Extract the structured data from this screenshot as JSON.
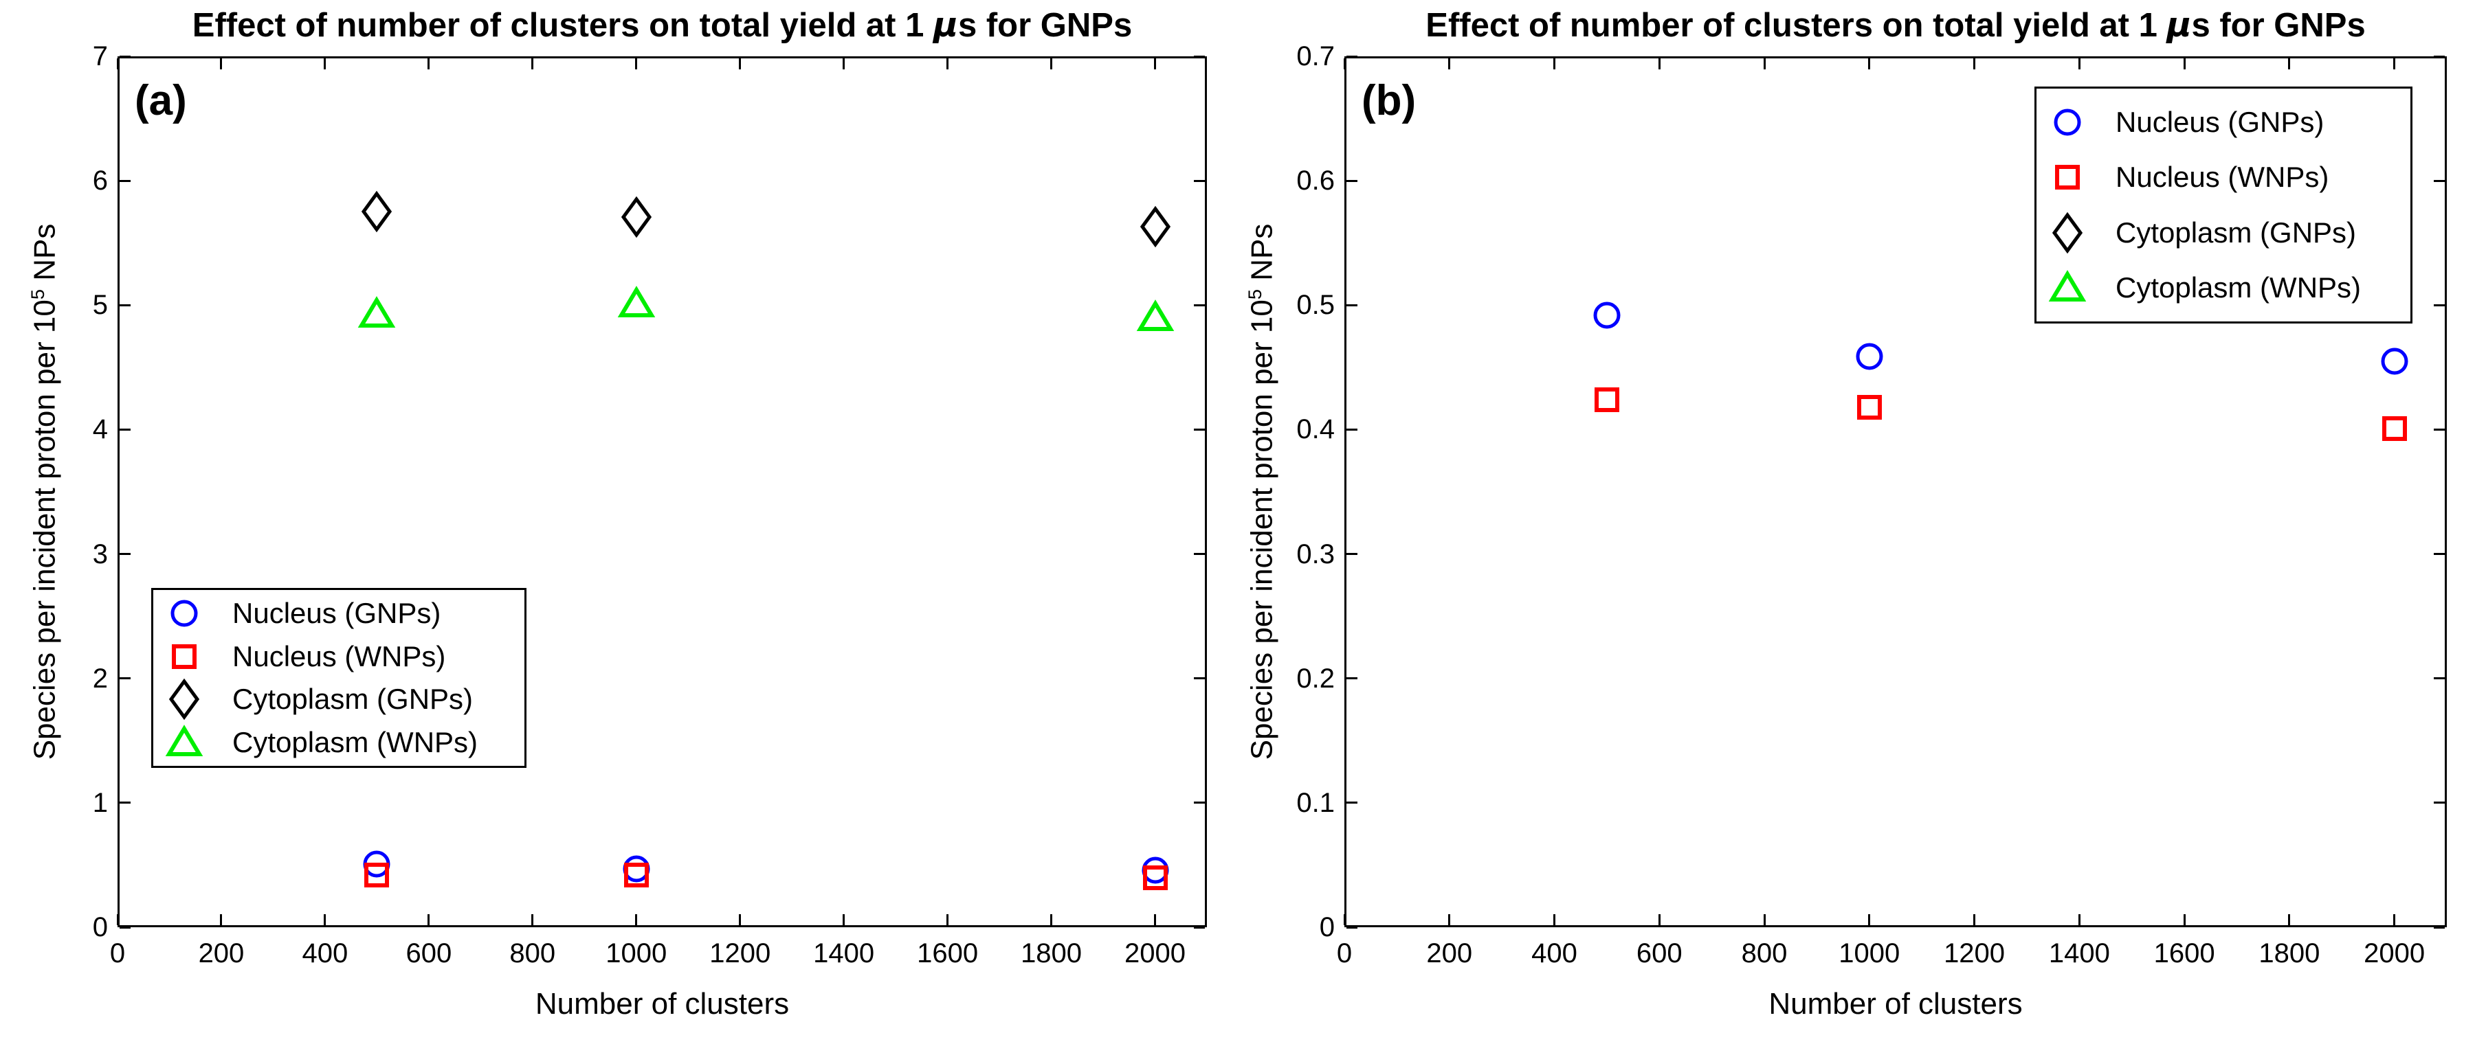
{
  "chart_data": [
    {
      "id": "a",
      "type": "scatter",
      "panel_label": "(a)",
      "title": "Effect of number of clusters on total yield at 1 μs for GNPs",
      "title_parts": {
        "prefix": "Effect of number of clusters on total yield at 1 ",
        "mu": "μ",
        "suffix": "s for GNPs"
      },
      "xlabel": "Number of clusters",
      "ylabel": "Species per incident proton per 10^5 NPs",
      "ylabel_parts": {
        "prefix": "Species per incident proton per 10",
        "sup": "5",
        "suffix": " NPs"
      },
      "xlim": [
        0,
        2100
      ],
      "ylim": [
        0,
        7
      ],
      "xticks": [
        0,
        200,
        400,
        600,
        800,
        1000,
        1200,
        1400,
        1600,
        1800,
        2000
      ],
      "xtick_labels": [
        "0",
        "200",
        "400",
        "600",
        "800",
        "1000",
        "1200",
        "1400",
        "1600",
        "1800",
        "2000"
      ],
      "yticks": [
        0,
        1,
        2,
        3,
        4,
        5,
        6,
        7
      ],
      "ytick_labels": [
        "0",
        "1",
        "2",
        "3",
        "4",
        "5",
        "6",
        "7"
      ],
      "grid": false,
      "legend_position": "inside-middle-left",
      "x": [
        500,
        1000,
        2000
      ],
      "series": [
        {
          "name": "Nucleus (GNPs)",
          "marker": "circle",
          "color": "#0000ff",
          "values": [
            0.51,
            0.47,
            0.46
          ]
        },
        {
          "name": "Nucleus (WNPs)",
          "marker": "square",
          "color": "#ff0000",
          "values": [
            0.42,
            0.42,
            0.4
          ]
        },
        {
          "name": "Cytoplasm (GNPs)",
          "marker": "diamond",
          "color": "#000000",
          "values": [
            5.75,
            5.71,
            5.63
          ]
        },
        {
          "name": "Cytoplasm (WNPs)",
          "marker": "triangle",
          "color": "#00ee00",
          "values": [
            4.93,
            5.01,
            4.9
          ]
        }
      ]
    },
    {
      "id": "b",
      "type": "scatter",
      "panel_label": "(b)",
      "title": "Effect of number of clusters on total yield at 1 μs for GNPs",
      "title_parts": {
        "prefix": "Effect of number of clusters on total yield at 1 ",
        "mu": "μ",
        "suffix": "s for GNPs"
      },
      "xlabel": "Number of clusters",
      "ylabel": "Species per incident proton per 10^5 NPs",
      "ylabel_parts": {
        "prefix": "Species per incident proton per 10",
        "sup": "5",
        "suffix": " NPs"
      },
      "xlim": [
        0,
        2100
      ],
      "ylim": [
        0,
        0.7
      ],
      "xticks": [
        0,
        200,
        400,
        600,
        800,
        1000,
        1200,
        1400,
        1600,
        1800,
        2000
      ],
      "xtick_labels": [
        "0",
        "200",
        "400",
        "600",
        "800",
        "1000",
        "1200",
        "1400",
        "1600",
        "1800",
        "2000"
      ],
      "yticks": [
        0,
        0.1,
        0.2,
        0.3,
        0.4,
        0.5,
        0.6,
        0.7
      ],
      "ytick_labels": [
        "0",
        "0.1",
        "0.2",
        "0.3",
        "0.4",
        "0.5",
        "0.6",
        "0.7"
      ],
      "grid": false,
      "legend_position": "inside-top-right",
      "x": [
        500,
        1000,
        2000
      ],
      "series": [
        {
          "name": "Nucleus (GNPs)",
          "marker": "circle",
          "color": "#0000ff",
          "values": [
            0.492,
            0.459,
            0.455
          ]
        },
        {
          "name": "Nucleus (WNPs)",
          "marker": "square",
          "color": "#ff0000",
          "values": [
            0.424,
            0.418,
            0.401
          ]
        },
        {
          "name": "Cytoplasm (GNPs)",
          "marker": "diamond",
          "color": "#000000",
          "values": []
        },
        {
          "name": "Cytoplasm (WNPs)",
          "marker": "triangle",
          "color": "#00ee00",
          "values": []
        }
      ]
    }
  ]
}
